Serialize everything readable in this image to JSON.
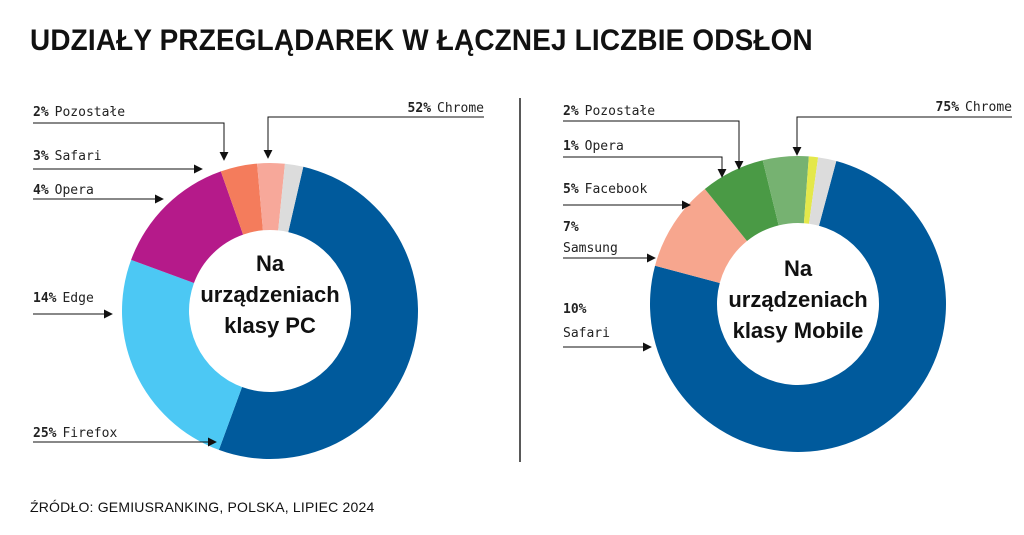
{
  "title": "UDZIAŁY PRZEGLĄDAREK W ŁĄCZNEJ LICZBIE ODSŁON",
  "source": "ŹRÓDŁO: GEMIUSRANKING, POLSKA, LIPIEC 2024",
  "chart_data": [
    {
      "type": "pie",
      "variant": "donut",
      "center_label": [
        "Na",
        "urządzeniach",
        "klasy PC"
      ],
      "slices": [
        {
          "label": "Chrome",
          "value": 52,
          "display": "52%",
          "color": "#005a9c"
        },
        {
          "label": "Firefox",
          "value": 25,
          "display": "25%",
          "color": "#4cc8f4"
        },
        {
          "label": "Edge",
          "value": 14,
          "display": "14%",
          "color": "#b51a8a"
        },
        {
          "label": "Opera",
          "value": 4,
          "display": "4%",
          "color": "#f47c5c"
        },
        {
          "label": "Safari",
          "value": 3,
          "display": "3%",
          "color": "#f7a89a"
        },
        {
          "label": "Pozostałe",
          "value": 2,
          "display": "2%",
          "color": "#dcdcdc"
        }
      ]
    },
    {
      "type": "pie",
      "variant": "donut",
      "center_label": [
        "Na",
        "urządzeniach",
        "klasy Mobile"
      ],
      "slices": [
        {
          "label": "Chrome",
          "value": 75,
          "display": "75%",
          "color": "#005a9c"
        },
        {
          "label": "Safari",
          "value": 10,
          "display": "10%",
          "color": "#f7a68e"
        },
        {
          "label": "Samsung",
          "value": 7,
          "display": "7%",
          "color": "#4a9a45"
        },
        {
          "label": "Facebook",
          "value": 5,
          "display": "5%",
          "color": "#76b271"
        },
        {
          "label": "Opera",
          "value": 1,
          "display": "1%",
          "color": "#e4e84a"
        },
        {
          "label": "Pozostałe",
          "value": 2,
          "display": "2%",
          "color": "#dcdcdc"
        }
      ]
    }
  ]
}
